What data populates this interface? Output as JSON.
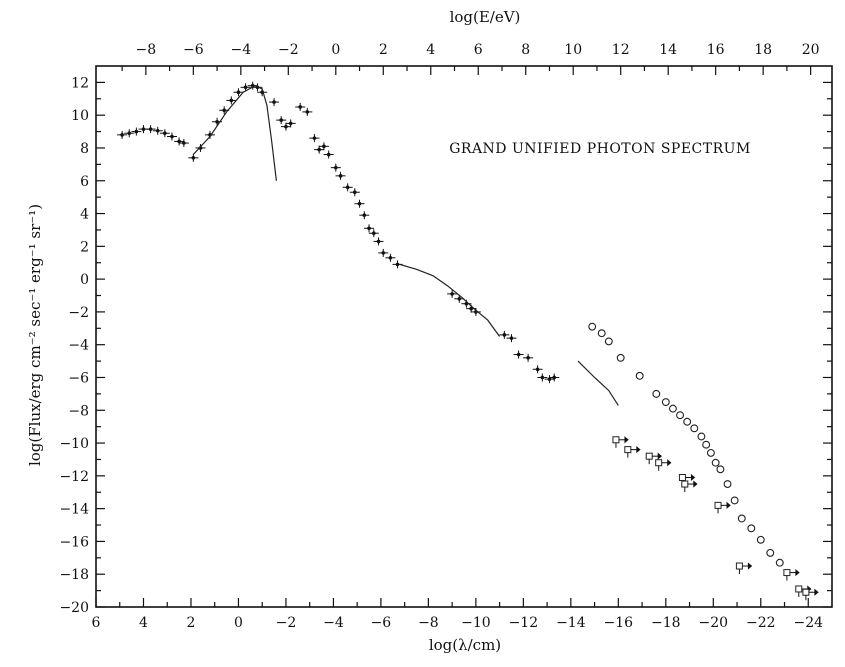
{
  "chart_data": {
    "type": "scatter",
    "title": "GRAND UNIFIED PHOTON SPECTRUM",
    "xlabel": "log(λ/cm)",
    "ylabel": "log(Flux/erg cm⁻² sec⁻¹ erg⁻¹ sr⁻¹)",
    "top_xlabel": "log(E/eV)",
    "xlim": [
      6,
      -25
    ],
    "ylim": [
      -20,
      13
    ],
    "top_xlim": [
      -10.1,
      20.9
    ],
    "x_ticks": [
      6,
      4,
      2,
      0,
      -2,
      -4,
      -6,
      -8,
      -10,
      -12,
      -14,
      -16,
      -18,
      -20,
      -22,
      -24
    ],
    "x_tick_labels": [
      "6",
      "4",
      "2",
      "0",
      "−2",
      "−4",
      "−6",
      "−8",
      "−10",
      "−12",
      "−14",
      "−16",
      "−18",
      "−20",
      "−22",
      "−24"
    ],
    "top_ticks": [
      -8,
      -6,
      -4,
      -2,
      0,
      2,
      4,
      6,
      8,
      10,
      12,
      14,
      16,
      18,
      20
    ],
    "top_tick_labels": [
      "−8",
      "−6",
      "−4",
      "−2",
      "0",
      "2",
      "4",
      "6",
      "8",
      "10",
      "12",
      "14",
      "16",
      "18",
      "20"
    ],
    "y_ticks": [
      12,
      10,
      8,
      6,
      4,
      2,
      0,
      -2,
      -4,
      -6,
      -8,
      -10,
      -12,
      -14,
      -16,
      -18,
      -20
    ],
    "y_tick_labels": [
      "12",
      "10",
      "8",
      "6",
      "4",
      "2",
      "0",
      "−2",
      "−4",
      "−6",
      "−8",
      "−10",
      "−12",
      "−14",
      "−16",
      "−18",
      "−20"
    ],
    "grid": false,
    "series": [
      {
        "marker": "errorbar-point",
        "points": [
          [
            4.9,
            8.8
          ],
          [
            4.6,
            8.9
          ],
          [
            4.3,
            9.0
          ],
          [
            4.0,
            9.15
          ],
          [
            3.7,
            9.15
          ],
          [
            3.4,
            9.05
          ],
          [
            3.1,
            8.9
          ],
          [
            2.8,
            8.7
          ],
          [
            2.5,
            8.4
          ],
          [
            2.3,
            8.3
          ],
          [
            1.9,
            7.4
          ],
          [
            1.6,
            8.0
          ],
          [
            1.2,
            8.8
          ],
          [
            0.9,
            9.6
          ],
          [
            0.6,
            10.3
          ],
          [
            0.3,
            10.9
          ],
          [
            0.0,
            11.4
          ],
          [
            -0.3,
            11.7
          ],
          [
            -0.6,
            11.8
          ],
          [
            -0.8,
            11.7
          ],
          [
            -1.0,
            11.4
          ],
          [
            -1.5,
            10.8
          ],
          [
            -1.8,
            9.7
          ],
          [
            -2.0,
            9.3
          ],
          [
            -2.2,
            9.5
          ],
          [
            -2.6,
            10.5
          ],
          [
            -2.9,
            10.2
          ],
          [
            -3.2,
            8.6
          ],
          [
            -3.4,
            7.9
          ],
          [
            -3.6,
            8.1
          ],
          [
            -3.8,
            7.6
          ],
          [
            -4.1,
            6.8
          ],
          [
            -4.3,
            6.3
          ],
          [
            -4.6,
            5.6
          ],
          [
            -4.9,
            5.3
          ],
          [
            -5.1,
            4.6
          ],
          [
            -5.3,
            3.9
          ],
          [
            -5.5,
            3.1
          ],
          [
            -5.7,
            2.8
          ],
          [
            -5.9,
            2.3
          ],
          [
            -6.1,
            1.6
          ],
          [
            -6.4,
            1.3
          ],
          [
            -6.7,
            0.9
          ],
          [
            -9.0,
            -0.9
          ],
          [
            -9.3,
            -1.2
          ],
          [
            -9.6,
            -1.5
          ],
          [
            -9.8,
            -1.8
          ],
          [
            -10.0,
            -2.0
          ],
          [
            -11.2,
            -3.4
          ],
          [
            -11.5,
            -3.6
          ],
          [
            -11.8,
            -4.6
          ],
          [
            -12.2,
            -4.8
          ],
          [
            -12.6,
            -5.5
          ],
          [
            -12.8,
            -6.0
          ],
          [
            -13.1,
            -6.1
          ],
          [
            -13.3,
            -6.0
          ]
        ]
      },
      {
        "marker": "circle",
        "points": [
          [
            -14.9,
            -2.9
          ],
          [
            -15.3,
            -3.3
          ],
          [
            -15.6,
            -3.8
          ],
          [
            -16.1,
            -4.8
          ],
          [
            -16.9,
            -5.9
          ],
          [
            -17.6,
            -7.0
          ],
          [
            -18.0,
            -7.5
          ],
          [
            -18.3,
            -7.9
          ],
          [
            -18.6,
            -8.3
          ],
          [
            -18.9,
            -8.7
          ],
          [
            -19.2,
            -9.1
          ],
          [
            -19.5,
            -9.6
          ],
          [
            -19.7,
            -10.1
          ],
          [
            -19.9,
            -10.6
          ],
          [
            -20.1,
            -11.2
          ],
          [
            -20.3,
            -11.6
          ],
          [
            -20.6,
            -12.5
          ],
          [
            -20.9,
            -13.5
          ],
          [
            -21.2,
            -14.6
          ],
          [
            -21.6,
            -15.2
          ],
          [
            -22.0,
            -15.9
          ],
          [
            -22.4,
            -16.7
          ],
          [
            -22.8,
            -17.3
          ]
        ]
      },
      {
        "marker": "square-upper-limit",
        "points": [
          [
            -15.9,
            -9.8
          ],
          [
            -16.4,
            -10.4
          ],
          [
            -17.3,
            -10.8
          ],
          [
            -17.7,
            -11.2
          ],
          [
            -18.7,
            -12.1
          ],
          [
            -18.8,
            -12.5
          ],
          [
            -20.2,
            -13.8
          ],
          [
            -21.1,
            -17.5
          ],
          [
            -23.1,
            -17.9
          ],
          [
            -23.6,
            -18.9
          ],
          [
            -23.9,
            -19.1
          ]
        ]
      },
      {
        "marker": "curve",
        "points": [
          [
            1.9,
            7.6
          ],
          [
            1.2,
            8.7
          ],
          [
            0.5,
            10.2
          ],
          [
            -0.2,
            11.4
          ],
          [
            -0.7,
            11.8
          ],
          [
            -1.0,
            11.6
          ],
          [
            -1.2,
            10.6
          ],
          [
            -1.4,
            8.4
          ],
          [
            -1.6,
            6.0
          ]
        ]
      },
      {
        "marker": "curve",
        "points": [
          [
            -6.8,
            0.9
          ],
          [
            -7.5,
            0.6
          ],
          [
            -8.2,
            0.2
          ],
          [
            -8.8,
            -0.4
          ],
          [
            -9.4,
            -1.1
          ],
          [
            -10.0,
            -1.9
          ],
          [
            -10.5,
            -2.5
          ],
          [
            -11.0,
            -3.5
          ]
        ]
      },
      {
        "marker": "curve",
        "points": [
          [
            -14.3,
            -5.0
          ],
          [
            -15.0,
            -6.0
          ],
          [
            -15.6,
            -6.8
          ],
          [
            -16.0,
            -7.7
          ]
        ]
      }
    ]
  }
}
